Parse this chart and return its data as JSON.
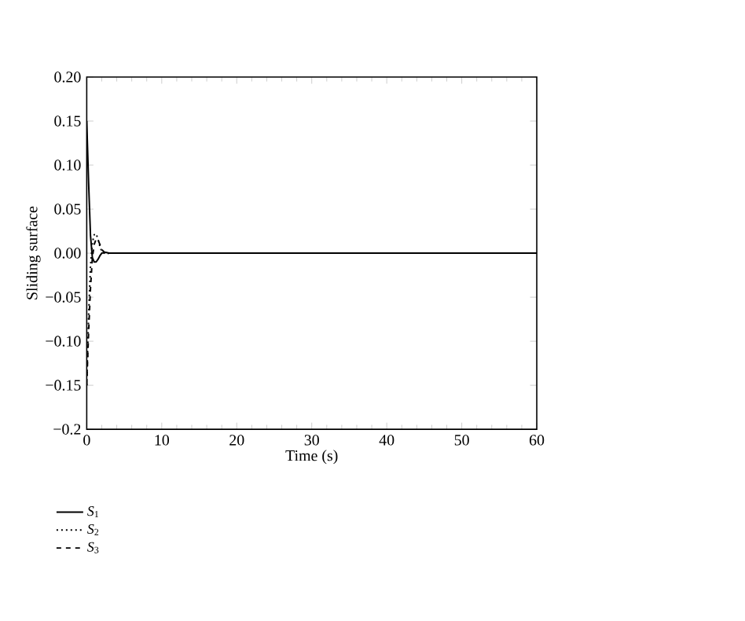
{
  "chart_data": {
    "type": "line",
    "xlabel": "Time (s)",
    "ylabel": "Sliding surface",
    "xlim": [
      0,
      60
    ],
    "xticks": [
      0,
      10,
      20,
      30,
      40,
      50,
      60
    ],
    "ylim": [
      -0.2,
      0.2
    ],
    "yticks": [
      {
        "value": -0.2,
        "label": "−0.2"
      },
      {
        "value": -0.15,
        "label": "−0.15"
      },
      {
        "value": -0.1,
        "label": "−0.10"
      },
      {
        "value": -0.05,
        "label": "−0.05"
      },
      {
        "value": 0,
        "label": "0.00"
      },
      {
        "value": 0.05,
        "label": "0.05"
      },
      {
        "value": 0.1,
        "label": "0.10"
      },
      {
        "value": 0.15,
        "label": "0.15"
      },
      {
        "value": 0.2,
        "label": "0.20"
      }
    ],
    "x": [
      0,
      0.25,
      0.5,
      0.75,
      1.0,
      1.25,
      1.5,
      1.75,
      2,
      2.5,
      3,
      60
    ],
    "series": [
      {
        "name": "*S*$_{1}$",
        "color": "#000000",
        "line_style": "solid",
        "values": [
          0.15,
          0.08,
          0.02,
          -0.005,
          -0.01,
          -0.01,
          -0.007,
          -0.003,
          0,
          0.001,
          0,
          0
        ]
      },
      {
        "name": "*S*$_{2}$",
        "color": "#000000",
        "line_style": "dotted",
        "values": [
          -0.15,
          -0.07,
          -0.015,
          0.012,
          0.021,
          0.022,
          0.016,
          0.008,
          0.002,
          -0.001,
          0,
          0
        ]
      },
      {
        "name": "*S*$_{3}$",
        "color": "#000000",
        "line_style": "dashed",
        "values": [
          -0.15,
          -0.09,
          -0.04,
          -0.005,
          0.01,
          0.016,
          0.015,
          0.01,
          0.004,
          0,
          0,
          0
        ]
      }
    ],
    "legend": "bottom left",
    "marker": "none",
    "grid": false
  }
}
